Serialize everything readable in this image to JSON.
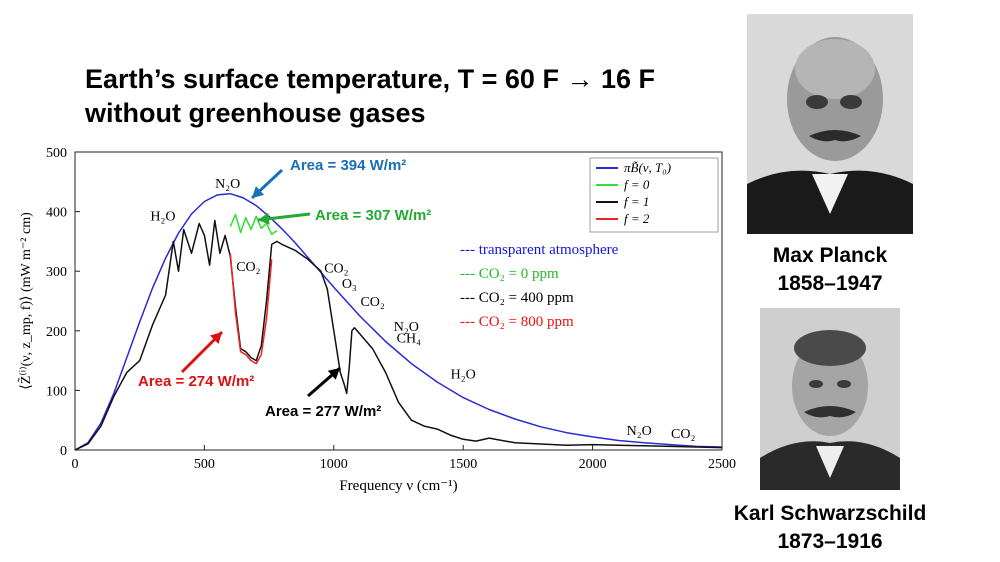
{
  "title": {
    "line1_prefix": "Earth’s surface temperature, T = 60 F",
    "arrow": "→",
    "line1_suffix": "16 F",
    "line2": "without greenhouse gases"
  },
  "portraits": [
    {
      "name": "Max Planck",
      "years": "1858–1947"
    },
    {
      "name": "Karl Schwarzschild",
      "years": "1873–1916"
    }
  ],
  "chart_data": {
    "type": "line",
    "xlabel": "Frequency ν (cm⁻¹)",
    "ylabel": "⟨Z̃⁽ⁱ⁾(ν, z_mp, f)⟩ (mW m⁻² cm)",
    "xlim": [
      0,
      2500
    ],
    "ylim": [
      0,
      500
    ],
    "xticks": [
      0,
      500,
      1000,
      1500,
      2000,
      2500
    ],
    "yticks": [
      0,
      100,
      200,
      300,
      400,
      500
    ],
    "grid": false,
    "legend": {
      "placement": "top-right",
      "entries": [
        {
          "label": "πB̃(ν, T₀)",
          "color": "#2a2ad4"
        },
        {
          "label": "f = 0",
          "color": "#33dd33"
        },
        {
          "label": "f = 1",
          "color": "#111111"
        },
        {
          "label": "f = 2",
          "color": "#ee2222"
        }
      ]
    },
    "text_legend": [
      {
        "text": "--- transparent atmosphere",
        "color": "#1515e0"
      },
      {
        "text": "--- CO₂ = 0 ppm",
        "color": "#22bb22"
      },
      {
        "text": "--- CO₂ = 400 ppm",
        "color": "#000000"
      },
      {
        "text": "--- CO₂ = 800 ppm",
        "color": "#ee1111"
      }
    ],
    "series": [
      {
        "name": "πB̃(ν, T₀)",
        "color": "#2a2ad4",
        "x": [
          0,
          50,
          100,
          150,
          200,
          250,
          300,
          350,
          400,
          450,
          500,
          550,
          600,
          650,
          700,
          750,
          800,
          850,
          900,
          950,
          1000,
          1100,
          1200,
          1300,
          1400,
          1500,
          1600,
          1700,
          1800,
          1900,
          2000,
          2100,
          2200,
          2300,
          2400,
          2500
        ],
        "y": [
          0,
          12,
          45,
          95,
          155,
          215,
          272,
          322,
          364,
          396,
          417,
          428,
          430,
          423,
          410,
          392,
          371,
          348,
          323,
          298,
          273,
          225,
          182,
          145,
          114,
          88,
          68,
          52,
          39,
          29,
          22,
          16,
          12,
          9,
          6,
          5
        ]
      },
      {
        "name": "f = 0",
        "color": "#33dd33",
        "x": [
          600,
          620,
          640,
          660,
          680,
          700,
          720,
          740,
          760,
          780
        ],
        "y": [
          375,
          395,
          365,
          390,
          370,
          392,
          372,
          380,
          362,
          368
        ]
      },
      {
        "name": "f = 1",
        "color": "#111111",
        "x": [
          0,
          50,
          100,
          150,
          200,
          250,
          300,
          350,
          380,
          400,
          420,
          450,
          480,
          500,
          520,
          540,
          560,
          580,
          600,
          620,
          640,
          660,
          680,
          700,
          720,
          740,
          760,
          780,
          800,
          850,
          900,
          950,
          975,
          1000,
          1025,
          1040,
          1050,
          1060,
          1070,
          1080,
          1100,
          1150,
          1200,
          1250,
          1300,
          1350,
          1400,
          1450,
          1500,
          1550,
          1600,
          1700,
          1800,
          1900,
          2000,
          2100,
          2200,
          2300,
          2400,
          2500
        ],
        "y": [
          0,
          10,
          40,
          90,
          130,
          150,
          210,
          260,
          350,
          300,
          370,
          330,
          380,
          360,
          310,
          385,
          330,
          360,
          325,
          240,
          170,
          165,
          155,
          150,
          175,
          250,
          345,
          350,
          345,
          335,
          320,
          300,
          270,
          200,
          130,
          110,
          95,
          140,
          200,
          205,
          195,
          170,
          130,
          80,
          50,
          40,
          35,
          25,
          18,
          15,
          20,
          12,
          10,
          8,
          9,
          8,
          7,
          6,
          5,
          4
        ]
      },
      {
        "name": "f = 2",
        "color": "#ee2222",
        "x": [
          600,
          620,
          640,
          660,
          680,
          700,
          720,
          740,
          760
        ],
        "y": [
          330,
          230,
          165,
          160,
          150,
          145,
          160,
          220,
          320
        ]
      }
    ],
    "annotations": [
      {
        "text": "Area = 394 W/m²",
        "color": "#1a6fb8"
      },
      {
        "text": "Area = 307 W/m²",
        "color": "#22aa33"
      },
      {
        "text": "Area = 274 W/m²",
        "color": "#e01010"
      },
      {
        "text": "Area = 277 W/m²",
        "color": "#000000"
      }
    ],
    "band_labels": [
      "N₂O",
      "H₂O",
      "CO₂",
      "CO₂",
      "O₃",
      "CO₂",
      "N₂O",
      "CH₄",
      "H₂O",
      "N₂O",
      "CO₂"
    ]
  }
}
